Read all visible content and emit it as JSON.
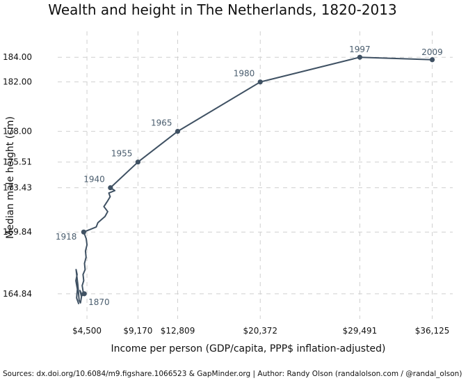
{
  "chart_data": {
    "type": "line",
    "title": "Wealth and height in The Netherlands, 1820-2013",
    "xlabel": "Income per person (GDP/capita, PPP$ inflation-adjusted)",
    "ylabel": "Median male height (cm)",
    "source": "Sources: dx.doi.org/10.6084/m9.figshare.1066523 & GapMinder.org | Author: Randy Olson (randalolson.com / @randal_olson)",
    "xlim": [
      1820,
      38000
    ],
    "ylim": [
      162.8,
      186.1
    ],
    "x_ticks": [
      {
        "value": 4500,
        "label": "$4,500"
      },
      {
        "value": 9170,
        "label": "$9,170"
      },
      {
        "value": 12809,
        "label": "$12,809"
      },
      {
        "value": 20372,
        "label": "$20,372"
      },
      {
        "value": 29491,
        "label": "$29,491"
      },
      {
        "value": 36125,
        "label": "$36,125"
      }
    ],
    "y_ticks": [
      {
        "value": 164.84,
        "label": "164.84"
      },
      {
        "value": 169.84,
        "label": "169.84"
      },
      {
        "value": 173.43,
        "label": "173.43"
      },
      {
        "value": 175.51,
        "label": "175.51"
      },
      {
        "value": 178.0,
        "label": "178.00"
      },
      {
        "value": 182.0,
        "label": "182.00"
      },
      {
        "value": 184.0,
        "label": "184.00"
      }
    ],
    "series": [
      {
        "name": "Netherlands",
        "points": [
          [
            3750,
            164.0
          ],
          [
            3550,
            164.5
          ],
          [
            3620,
            165.2
          ],
          [
            3480,
            165.9
          ],
          [
            3600,
            166.4
          ],
          [
            3500,
            166.8
          ],
          [
            3660,
            165.6
          ],
          [
            3780,
            164.3
          ],
          [
            3900,
            164.1
          ],
          [
            4000,
            164.6
          ],
          [
            3860,
            165.1
          ],
          [
            4080,
            164.7
          ],
          [
            4250,
            164.84
          ],
          [
            4150,
            165.0
          ],
          [
            4060,
            165.5
          ],
          [
            4200,
            165.9
          ],
          [
            4140,
            166.4
          ],
          [
            4330,
            166.8
          ],
          [
            4270,
            167.3
          ],
          [
            4420,
            167.8
          ],
          [
            4360,
            168.3
          ],
          [
            4500,
            168.8
          ],
          [
            4430,
            169.3
          ],
          [
            4200,
            169.84
          ],
          [
            5350,
            170.25
          ],
          [
            5500,
            170.6
          ],
          [
            6150,
            171.1
          ],
          [
            6400,
            171.5
          ],
          [
            6050,
            171.9
          ],
          [
            6350,
            172.3
          ],
          [
            6620,
            172.7
          ],
          [
            6500,
            173.0
          ],
          [
            7050,
            173.2
          ],
          [
            6650,
            173.43
          ],
          [
            9170,
            175.51
          ],
          [
            12809,
            178.0
          ],
          [
            20372,
            182.0
          ],
          [
            29491,
            184.0
          ],
          [
            36125,
            183.8
          ]
        ]
      }
    ],
    "markers": [
      {
        "year": "1870",
        "x": 4250,
        "y": 164.84,
        "pos": "right-below"
      },
      {
        "year": "1918",
        "x": 4200,
        "y": 169.84,
        "pos": "left-below"
      },
      {
        "year": "1940",
        "x": 6650,
        "y": 173.43,
        "pos": "left-above"
      },
      {
        "year": "1955",
        "x": 9170,
        "y": 175.51,
        "pos": "left-above"
      },
      {
        "year": "1965",
        "x": 12809,
        "y": 178.0,
        "pos": "left-above"
      },
      {
        "year": "1980",
        "x": 20372,
        "y": 182.0,
        "pos": "left-above"
      },
      {
        "year": "1997",
        "x": 29491,
        "y": 184.0,
        "pos": "above"
      },
      {
        "year": "2009",
        "x": 36125,
        "y": 183.8,
        "pos": "above"
      }
    ]
  }
}
